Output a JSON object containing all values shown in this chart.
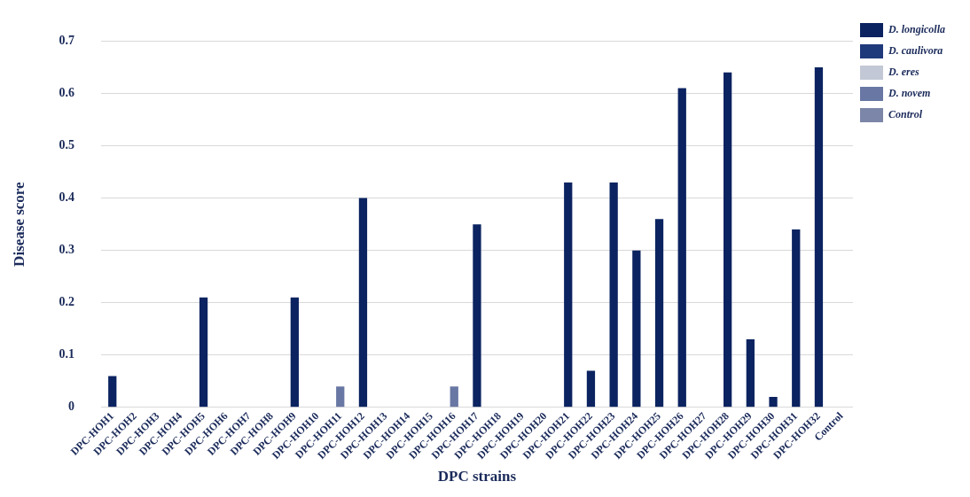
{
  "chart_data": {
    "type": "bar",
    "xlabel": "DPC strains",
    "ylabel": "Disease score",
    "categories": [
      "DPC-HOH1",
      "DPC-HOH2",
      "DPC-HOH3",
      "DPC-HOH4",
      "DPC-HOH5",
      "DPC-HOH6",
      "DPC-HOH7",
      "DPC-HOH8",
      "DPC-HOH9",
      "DPC-HOH10",
      "DPC-HOH11",
      "DPC-HOH12",
      "DPC-HOH13",
      "DPC-HOH14",
      "DPC-HOH15",
      "DPC-HOH16",
      "DPC-HOH17",
      "DPC-HOH18",
      "DPC-HOH19",
      "DPC-HOH20",
      "DPC-HOH21",
      "DPC-HOH22",
      "DPC-HOH23",
      "DPC-HOH24",
      "DPC-HOH25",
      "DPC-HOH26",
      "DPC-HOH27",
      "DPC-HOH28",
      "DPC-HOH29",
      "DPC-HOH30",
      "DPC-HOH31",
      "DPC-HOH32",
      "Control"
    ],
    "series": [
      {
        "name": "D. longicolla",
        "color": "#0b2360",
        "values": [
          0.06,
          null,
          null,
          null,
          0.21,
          null,
          null,
          null,
          0.21,
          null,
          null,
          0.4,
          null,
          null,
          null,
          null,
          0.35,
          null,
          null,
          null,
          0.43,
          0.07,
          0.43,
          0.3,
          0.36,
          0.61,
          null,
          0.64,
          0.13,
          0.02,
          0.34,
          0.65,
          null
        ]
      },
      {
        "name": "D. caulivora",
        "color": "#1f3a7a",
        "values": [
          null,
          null,
          null,
          null,
          null,
          null,
          null,
          null,
          null,
          null,
          null,
          null,
          null,
          null,
          null,
          null,
          null,
          null,
          null,
          null,
          null,
          null,
          null,
          null,
          null,
          null,
          null,
          null,
          null,
          null,
          null,
          null,
          null
        ]
      },
      {
        "name": "D. eres",
        "color": "#c3c8d6",
        "values": [
          null,
          null,
          null,
          null,
          null,
          null,
          null,
          null,
          null,
          null,
          null,
          null,
          null,
          null,
          null,
          null,
          null,
          null,
          null,
          null,
          null,
          null,
          null,
          null,
          null,
          null,
          null,
          null,
          null,
          null,
          null,
          null,
          null
        ]
      },
      {
        "name": "D. novem",
        "color": "#6877a3",
        "values": [
          null,
          null,
          null,
          null,
          null,
          null,
          null,
          null,
          null,
          null,
          0.04,
          null,
          null,
          null,
          null,
          0.04,
          null,
          null,
          null,
          null,
          null,
          null,
          null,
          null,
          null,
          null,
          null,
          null,
          null,
          null,
          null,
          null,
          null
        ]
      },
      {
        "name": "Control",
        "color": "#7b86a8",
        "values": [
          null,
          null,
          null,
          null,
          null,
          null,
          null,
          null,
          null,
          null,
          null,
          null,
          null,
          null,
          null,
          null,
          null,
          null,
          null,
          null,
          null,
          null,
          null,
          null,
          null,
          null,
          null,
          null,
          null,
          null,
          null,
          null,
          null
        ]
      }
    ],
    "ylim": [
      0,
      0.7
    ],
    "yticks": [
      0,
      0.1,
      0.2,
      0.3,
      0.4,
      0.5,
      0.6,
      0.7
    ],
    "grid": "y",
    "legend": "top right"
  }
}
